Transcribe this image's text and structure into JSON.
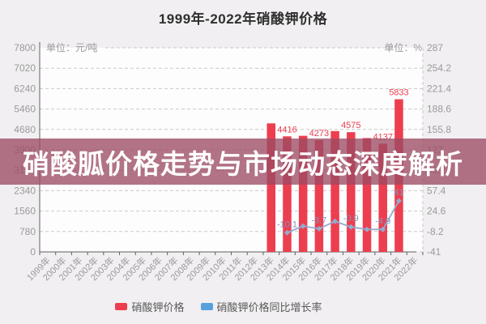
{
  "overlay": {
    "headline": "硝酸胍价格走势与市场动态深度解析",
    "background": "rgba(156,76,100,0.78)",
    "text_color": "#ffffff"
  },
  "legend": {
    "items": [
      {
        "label": "硝酸钾价格",
        "color": "#ed3e50"
      },
      {
        "label": "硝酸钾价格同比增长率",
        "color": "#58a0dc"
      }
    ]
  },
  "chart_data": {
    "type": "bar+line",
    "title": "1999年-2022年硝酸钾价格",
    "categories": [
      "1999年",
      "2000年",
      "2001年",
      "2002年",
      "2003年",
      "2004年",
      "2005年",
      "2006年",
      "2007年",
      "2008年",
      "2009年",
      "2010年",
      "2011年",
      "2012年",
      "2013年",
      "2014年",
      "2015年",
      "2016年",
      "2017年",
      "2018年",
      "2019年",
      "2020年",
      "2021年",
      "2022年"
    ],
    "left_axis": {
      "unit_label": "单位：元/吨",
      "range": [
        0,
        7800
      ],
      "ticks": [
        "7800",
        "7020",
        "6240",
        "5460",
        "4680",
        "3900",
        "3120",
        "2340",
        "1560",
        "780",
        "0"
      ]
    },
    "right_axis": {
      "unit_label": "单位：%",
      "range": [
        -41,
        287
      ],
      "ticks": [
        "287",
        "254.2",
        "221.4",
        "188.6",
        "155.8",
        "123",
        "90.2",
        "57.4",
        "24.6",
        "-8.2",
        "-41"
      ]
    },
    "grid": true,
    "legend_position": "bottom",
    "series": [
      {
        "name": "硝酸钾价格",
        "type": "bar",
        "axis": "left",
        "unit": "元/吨",
        "color": "#ed3e50",
        "values": [
          null,
          null,
          null,
          null,
          null,
          null,
          null,
          null,
          null,
          null,
          null,
          null,
          null,
          null,
          4912,
          4416,
          4437,
          4273,
          4617,
          4575,
          4350,
          4137,
          5833,
          null
        ],
        "point_labels": [
          null,
          null,
          null,
          null,
          null,
          null,
          null,
          null,
          null,
          null,
          null,
          null,
          null,
          null,
          null,
          "4416",
          null,
          "4273",
          null,
          "4575",
          null,
          "4137",
          "5833",
          null
        ]
      },
      {
        "name": "硝酸钾价格同比增长率",
        "type": "line",
        "axis": "right",
        "unit": "%",
        "color": "#93abd0",
        "values": [
          null,
          null,
          null,
          null,
          null,
          null,
          null,
          null,
          null,
          null,
          null,
          null,
          null,
          null,
          null,
          -10.1,
          0.5,
          -3.7,
          8.1,
          -0.9,
          -4.9,
          -4.9,
          41,
          null
        ],
        "point_labels": [
          null,
          null,
          null,
          null,
          null,
          null,
          null,
          null,
          null,
          null,
          null,
          null,
          null,
          null,
          null,
          "-10.1",
          null,
          "-3.7",
          null,
          "-0.9",
          null,
          "-4.9",
          "41",
          null
        ]
      }
    ],
    "styles": {
      "plot_bg": "#fdfdfd",
      "gridline_color": "#c9c9c9",
      "axis_line_color": "#606060",
      "tick_label_color": "#9b9b9b",
      "bar_label_color": "#ed3e50",
      "line_label_color": "#8296bd"
    }
  }
}
